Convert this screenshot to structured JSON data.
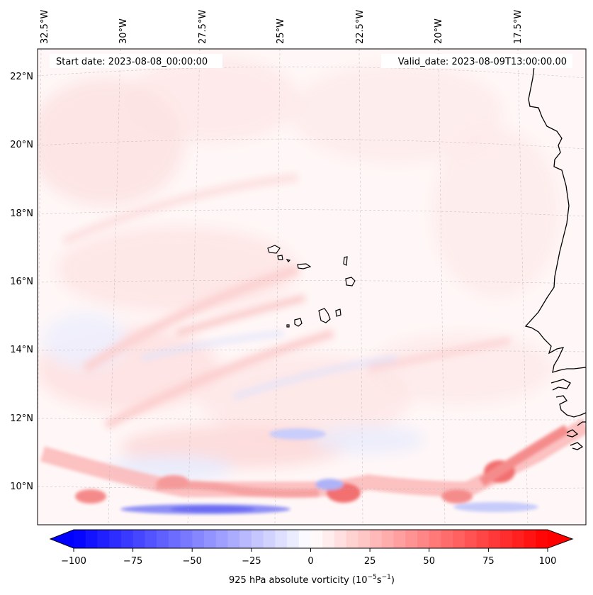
{
  "header": {
    "start_date": "Start date: 2023-08-08_00:00:00",
    "valid_date": "Valid_date: 2023-08-09T13:00:00.00"
  },
  "map": {
    "lon_labels": [
      "32.5°W",
      "30°W",
      "27.5°W",
      "25°W",
      "22.5°W",
      "20°W",
      "17.5°W"
    ],
    "lat_labels": [
      "22°N",
      "20°N",
      "18°N",
      "16°N",
      "14°N",
      "12°N",
      "10°N"
    ],
    "gridlines": true
  },
  "colorbar": {
    "ticks": [
      "−100",
      "−75",
      "−50",
      "−25",
      "0",
      "25",
      "50",
      "75",
      "100"
    ],
    "label": "925 hPa absolute vorticity (10",
    "label_exp1": "−5",
    "label_mid": "s",
    "label_exp2": "−1",
    "label_end": ")",
    "min": -100,
    "max": 100,
    "colormap": "bwr",
    "neg_color": "#0000ff",
    "zero_color": "#ffffff",
    "pos_color": "#ff0000"
  }
}
